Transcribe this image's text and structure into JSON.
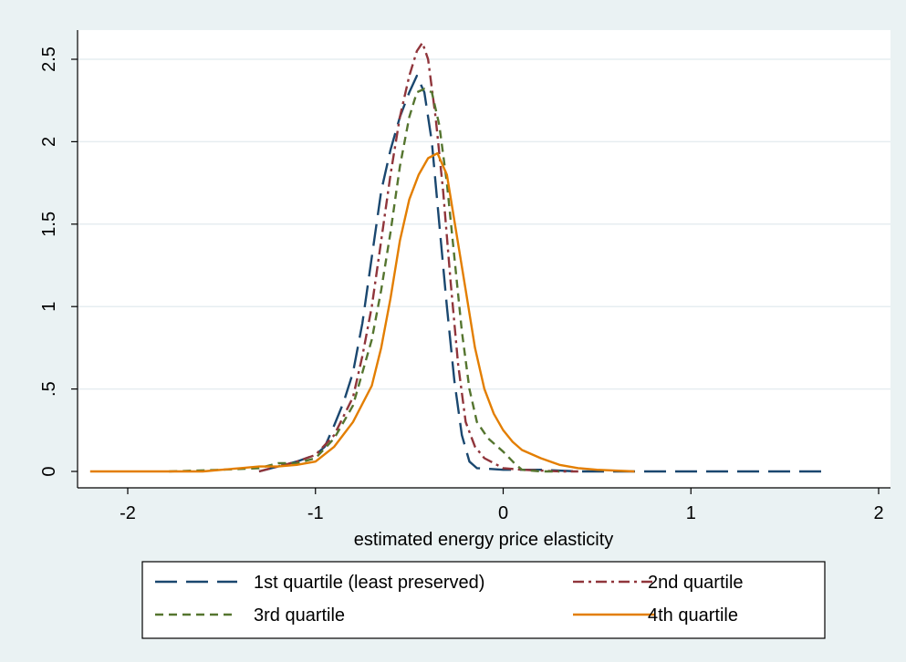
{
  "chart_data": {
    "type": "line",
    "xlabel": "estimated energy price elasticity",
    "ylabel": "",
    "xlim": [
      -2.2,
      2.0
    ],
    "ylim": [
      0,
      2.65
    ],
    "x_ticks": [
      -2,
      -1,
      0,
      1,
      2
    ],
    "x_tick_labels": [
      "-2",
      "-1",
      "0",
      "1",
      "2"
    ],
    "y_ticks": [
      0,
      0.5,
      1,
      1.5,
      2,
      2.5
    ],
    "y_tick_labels": [
      "0",
      ".5",
      "1",
      "1.5",
      "2",
      "2.5"
    ],
    "grid": true,
    "legend_position": "bottom",
    "series": [
      {
        "name": "1st quartile (least preserved)",
        "color": "#1a476f",
        "dash": "long-dash",
        "points": [
          [
            -1.3,
            0.0
          ],
          [
            -1.2,
            0.03
          ],
          [
            -1.1,
            0.06
          ],
          [
            -1.0,
            0.1
          ],
          [
            -0.95,
            0.15
          ],
          [
            -0.9,
            0.28
          ],
          [
            -0.85,
            0.42
          ],
          [
            -0.8,
            0.6
          ],
          [
            -0.75,
            0.9
          ],
          [
            -0.7,
            1.3
          ],
          [
            -0.65,
            1.7
          ],
          [
            -0.6,
            1.95
          ],
          [
            -0.55,
            2.15
          ],
          [
            -0.5,
            2.3
          ],
          [
            -0.46,
            2.4
          ],
          [
            -0.42,
            2.3
          ],
          [
            -0.38,
            2.0
          ],
          [
            -0.34,
            1.5
          ],
          [
            -0.3,
            1.0
          ],
          [
            -0.26,
            0.55
          ],
          [
            -0.22,
            0.22
          ],
          [
            -0.18,
            0.06
          ],
          [
            -0.14,
            0.02
          ],
          [
            0.0,
            0.01
          ],
          [
            0.2,
            0.01
          ],
          [
            0.4,
            0.0
          ],
          [
            0.6,
            0.0
          ],
          [
            0.8,
            0.0
          ],
          [
            1.0,
            0.0
          ],
          [
            1.2,
            0.0
          ],
          [
            1.4,
            0.0
          ],
          [
            1.6,
            0.0
          ],
          [
            1.73,
            0.0
          ]
        ]
      },
      {
        "name": "2nd quartile",
        "color": "#90353b",
        "dash": "dash-dot",
        "points": [
          [
            -1.3,
            0.0
          ],
          [
            -1.2,
            0.03
          ],
          [
            -1.1,
            0.06
          ],
          [
            -1.0,
            0.1
          ],
          [
            -0.9,
            0.22
          ],
          [
            -0.8,
            0.45
          ],
          [
            -0.75,
            0.7
          ],
          [
            -0.7,
            1.0
          ],
          [
            -0.65,
            1.4
          ],
          [
            -0.6,
            1.8
          ],
          [
            -0.55,
            2.15
          ],
          [
            -0.5,
            2.4
          ],
          [
            -0.46,
            2.55
          ],
          [
            -0.43,
            2.6
          ],
          [
            -0.4,
            2.5
          ],
          [
            -0.36,
            2.15
          ],
          [
            -0.32,
            1.7
          ],
          [
            -0.28,
            1.15
          ],
          [
            -0.24,
            0.65
          ],
          [
            -0.2,
            0.3
          ],
          [
            -0.15,
            0.15
          ],
          [
            -0.1,
            0.08
          ],
          [
            0.0,
            0.02
          ],
          [
            0.1,
            0.01
          ],
          [
            0.3,
            0.0
          ],
          [
            0.4,
            0.0
          ]
        ]
      },
      {
        "name": "3rd quartile",
        "color": "#55752f",
        "dash": "short-dash",
        "points": [
          [
            -1.78,
            0.0
          ],
          [
            -1.5,
            0.01
          ],
          [
            -1.3,
            0.02
          ],
          [
            -1.2,
            0.05
          ],
          [
            -1.1,
            0.05
          ],
          [
            -1.0,
            0.08
          ],
          [
            -0.9,
            0.2
          ],
          [
            -0.8,
            0.4
          ],
          [
            -0.7,
            0.8
          ],
          [
            -0.65,
            1.1
          ],
          [
            -0.6,
            1.45
          ],
          [
            -0.55,
            1.85
          ],
          [
            -0.5,
            2.15
          ],
          [
            -0.46,
            2.3
          ],
          [
            -0.42,
            2.32
          ],
          [
            -0.38,
            2.3
          ],
          [
            -0.34,
            2.1
          ],
          [
            -0.3,
            1.75
          ],
          [
            -0.26,
            1.3
          ],
          [
            -0.22,
            0.85
          ],
          [
            -0.18,
            0.5
          ],
          [
            -0.14,
            0.3
          ],
          [
            -0.08,
            0.2
          ],
          [
            0.0,
            0.12
          ],
          [
            0.06,
            0.05
          ],
          [
            0.1,
            0.01
          ],
          [
            0.2,
            0.0
          ],
          [
            0.3,
            0.0
          ]
        ]
      },
      {
        "name": "4th quartile",
        "color": "#e37e00",
        "dash": "solid",
        "points": [
          [
            -2.2,
            0.0
          ],
          [
            -1.8,
            0.0
          ],
          [
            -1.6,
            0.0
          ],
          [
            -1.5,
            0.01
          ],
          [
            -1.4,
            0.02
          ],
          [
            -1.3,
            0.03
          ],
          [
            -1.2,
            0.03
          ],
          [
            -1.1,
            0.04
          ],
          [
            -1.0,
            0.06
          ],
          [
            -0.9,
            0.15
          ],
          [
            -0.8,
            0.3
          ],
          [
            -0.7,
            0.52
          ],
          [
            -0.65,
            0.75
          ],
          [
            -0.6,
            1.05
          ],
          [
            -0.55,
            1.4
          ],
          [
            -0.5,
            1.65
          ],
          [
            -0.45,
            1.8
          ],
          [
            -0.4,
            1.9
          ],
          [
            -0.35,
            1.93
          ],
          [
            -0.3,
            1.8
          ],
          [
            -0.25,
            1.45
          ],
          [
            -0.2,
            1.1
          ],
          [
            -0.15,
            0.75
          ],
          [
            -0.1,
            0.5
          ],
          [
            -0.05,
            0.35
          ],
          [
            0.0,
            0.25
          ],
          [
            0.05,
            0.18
          ],
          [
            0.1,
            0.13
          ],
          [
            0.2,
            0.08
          ],
          [
            0.3,
            0.04
          ],
          [
            0.4,
            0.02
          ],
          [
            0.5,
            0.01
          ],
          [
            0.7,
            0.0
          ]
        ]
      }
    ]
  }
}
